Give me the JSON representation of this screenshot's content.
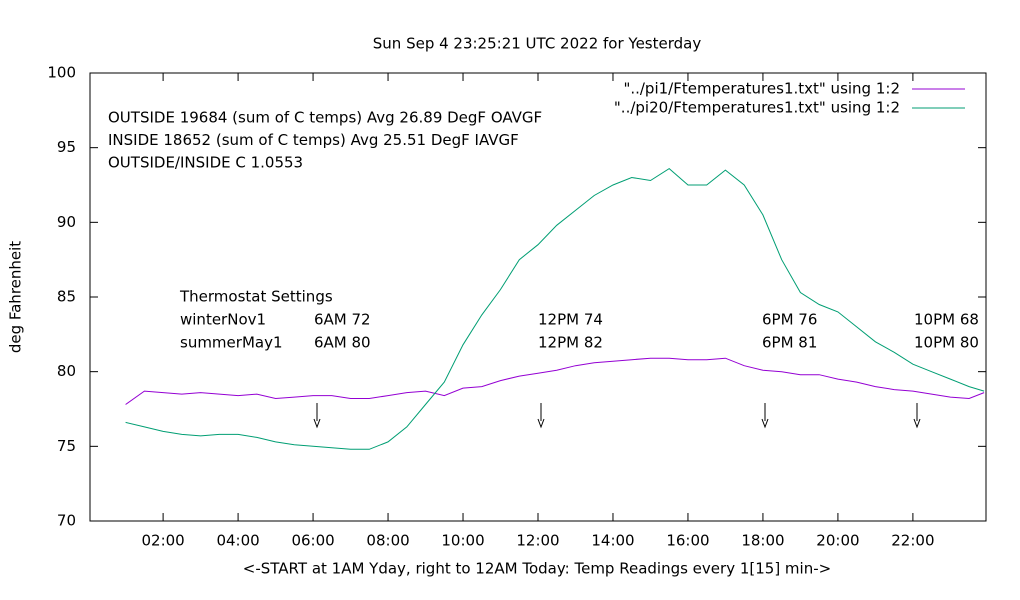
{
  "chart_data": {
    "type": "line",
    "title": "Sun Sep  4 23:25:21 UTC 2022 for Yesterday",
    "ylabel": "deg Fahrenheit",
    "xlabel": "<-START at 1AM Yday, right to 12AM Today:  Temp Readings every 1[15] min->",
    "annotations": [
      "OUTSIDE 19684 (sum of C temps) Avg 26.89 DegF OAVGF",
      "INSIDE 18652 (sum of C temps) Avg 25.51 DegF IAVGF",
      "OUTSIDE/INSIDE C 1.0553"
    ],
    "thermostat": {
      "title": "Thermostat Settings",
      "rows": [
        [
          "winterNov1",
          "6AM 72",
          "12PM 74",
          "6PM 76",
          "10PM 68"
        ],
        [
          "summerMay1",
          "6AM 80",
          "12PM 82",
          "6PM 81",
          "10PM 80"
        ]
      ]
    },
    "x": [
      1.0,
      1.5,
      2.0,
      2.5,
      3.0,
      3.5,
      4.0,
      4.5,
      5.0,
      5.5,
      6.0,
      6.5,
      7.0,
      7.5,
      8.0,
      8.5,
      9.0,
      9.5,
      10.0,
      10.5,
      11.0,
      11.5,
      12.0,
      12.5,
      13.0,
      13.5,
      14.0,
      14.5,
      15.0,
      15.5,
      16.0,
      16.5,
      17.0,
      17.5,
      18.0,
      18.5,
      19.0,
      19.5,
      20.0,
      20.5,
      21.0,
      21.5,
      22.0,
      22.5,
      23.0,
      23.5,
      23.9
    ],
    "series": [
      {
        "name": "\"../pi1/Ftemperatures1.txt\" using 1:2",
        "color": "#9400d3",
        "values": [
          77.8,
          78.7,
          78.6,
          78.5,
          78.6,
          78.5,
          78.4,
          78.5,
          78.2,
          78.3,
          78.4,
          78.4,
          78.2,
          78.2,
          78.4,
          78.6,
          78.7,
          78.4,
          78.9,
          79.0,
          79.4,
          79.7,
          79.9,
          80.1,
          80.4,
          80.6,
          80.7,
          80.8,
          80.9,
          80.9,
          80.8,
          80.8,
          80.9,
          80.4,
          80.1,
          80.0,
          79.8,
          79.8,
          79.5,
          79.3,
          79.0,
          78.8,
          78.7,
          78.5,
          78.3,
          78.2,
          78.6
        ]
      },
      {
        "name": "\"../pi20/Ftemperatures1.txt\" using 1:2",
        "color": "#009e73",
        "values": [
          76.6,
          76.3,
          76.0,
          75.8,
          75.7,
          75.8,
          75.8,
          75.6,
          75.3,
          75.1,
          75.0,
          74.9,
          74.8,
          74.8,
          75.3,
          76.3,
          77.8,
          79.3,
          81.8,
          83.8,
          85.5,
          87.5,
          88.5,
          89.8,
          90.8,
          91.8,
          92.5,
          93.0,
          92.8,
          93.6,
          92.5,
          92.5,
          93.5,
          92.5,
          90.5,
          87.5,
          85.3,
          84.5,
          84.0,
          83.0,
          82.0,
          81.3,
          80.5,
          80.0,
          79.5,
          79.0,
          78.7
        ]
      }
    ],
    "xlim": [
      0.05,
      23.95
    ],
    "xticks": [
      {
        "value": 2,
        "label": "02:00"
      },
      {
        "value": 4,
        "label": "04:00"
      },
      {
        "value": 6,
        "label": "06:00"
      },
      {
        "value": 8,
        "label": "08:00"
      },
      {
        "value": 10,
        "label": "10:00"
      },
      {
        "value": 12,
        "label": "12:00"
      },
      {
        "value": 14,
        "label": "14:00"
      },
      {
        "value": 16,
        "label": "16:00"
      },
      {
        "value": 18,
        "label": "18:00"
      },
      {
        "value": 20,
        "label": "20:00"
      },
      {
        "value": 22,
        "label": "22:00"
      }
    ],
    "ylim": [
      70,
      100
    ],
    "yticks": [
      70,
      75,
      80,
      85,
      90,
      95,
      100
    ]
  }
}
